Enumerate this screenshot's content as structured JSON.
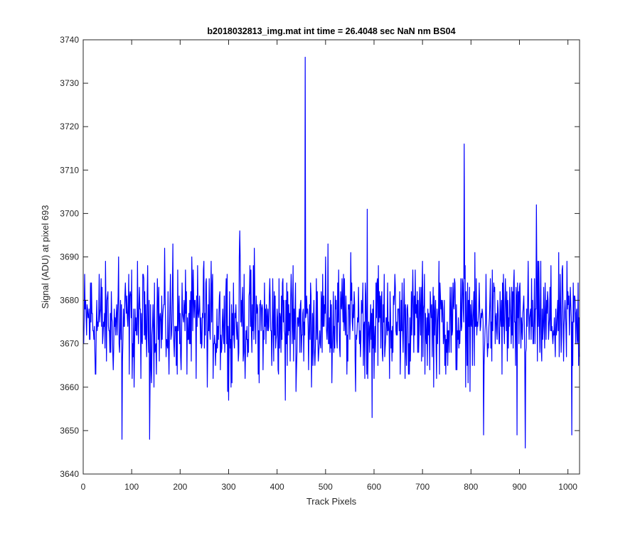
{
  "chart_data": {
    "type": "line",
    "title": "b2018032813_img.mat int time = 26.4048 sec  NaN nm BS04",
    "xlabel": "Track Pixels",
    "ylabel": "Signal (ADU) at pixel 693",
    "xlim": [
      0,
      1024
    ],
    "ylim": [
      3640,
      3740
    ],
    "x_ticks": [
      0,
      100,
      200,
      300,
      400,
      500,
      600,
      700,
      800,
      900,
      1000
    ],
    "y_ticks": [
      3640,
      3650,
      3660,
      3670,
      3680,
      3690,
      3700,
      3710,
      3720,
      3730,
      3740
    ],
    "grid": false,
    "line_color": "#0000ff",
    "series": [
      {
        "x_start": 1,
        "x_step": 1,
        "point_count": 1024,
        "mean": 3675,
        "noise_range": [
          3656,
          3694
        ],
        "values_sampled_every_8_pixels": [
          3670,
          3678,
          3684,
          3663,
          3686,
          3672,
          3680,
          3668,
          3674,
          3690,
          3666,
          3677,
          3682,
          3660,
          3676,
          3671,
          3679,
          3648,
          3673,
          3685,
          3669,
          3681,
          3663,
          3693,
          3674,
          3667,
          3678,
          3671,
          3684,
          3662,
          3676,
          3689,
          3670,
          3675,
          3665,
          3681,
          3672,
          3686,
          3660,
          3677,
          3668,
          3683,
          3671,
          3674,
          3692,
          3663,
          3679,
          3670,
          3685,
          3666,
          3676,
          3681,
          3657,
          3673,
          3688,
          3668,
          3680,
          3672,
          3664,
          3677,
          3685,
          3670,
          3674,
          3693,
          3661,
          3678,
          3669,
          3686,
          3672,
          3680,
          3666,
          3675,
          3684,
          3663,
          3679,
          3671,
          3688,
          3668,
          3676,
          3682
        ],
        "peaks": [
          {
            "x": 80,
            "y": 3648
          },
          {
            "x": 323,
            "y": 3696
          },
          {
            "x": 458,
            "y": 3736
          },
          {
            "x": 586,
            "y": 3701
          },
          {
            "x": 596,
            "y": 3653
          },
          {
            "x": 786,
            "y": 3716
          },
          {
            "x": 826,
            "y": 3649
          },
          {
            "x": 895,
            "y": 3649
          },
          {
            "x": 912,
            "y": 3646
          },
          {
            "x": 935,
            "y": 3702
          },
          {
            "x": 1008,
            "y": 3649
          }
        ]
      }
    ]
  }
}
